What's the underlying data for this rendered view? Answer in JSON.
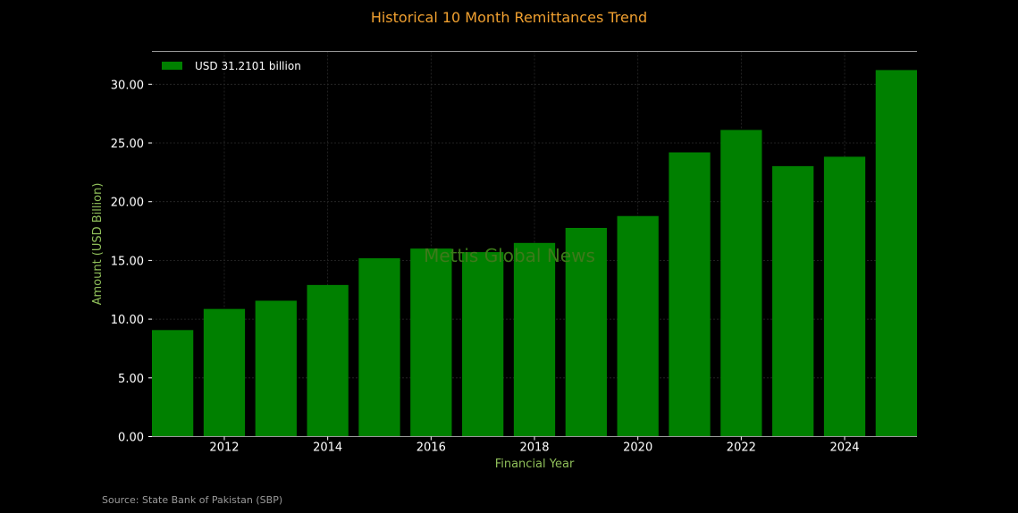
{
  "chart_data": {
    "type": "bar",
    "title": "Historical 10 Month Remittances Trend",
    "xlabel": "Financial Year",
    "ylabel": "Amount (USD Billion)",
    "x": [
      2011,
      2012,
      2013,
      2014,
      2015,
      2016,
      2017,
      2018,
      2019,
      2020,
      2021,
      2022,
      2023,
      2024,
      2025
    ],
    "values": [
      9.07,
      10.87,
      11.57,
      12.91,
      15.19,
      16.01,
      15.71,
      16.49,
      17.77,
      18.78,
      24.2,
      26.11,
      23.03,
      23.83,
      31.2101
    ],
    "xticks": [
      "2012",
      "2014",
      "2016",
      "2018",
      "2020",
      "2022",
      "2024"
    ],
    "xtick_values": [
      2012,
      2014,
      2016,
      2018,
      2020,
      2022,
      2024
    ],
    "yticks": [
      "0.00",
      "5.00",
      "10.00",
      "15.00",
      "20.00",
      "25.00",
      "30.00"
    ],
    "ytick_values": [
      0,
      5,
      10,
      15,
      20,
      25,
      30
    ],
    "ylim": [
      0,
      32.8
    ],
    "xlim": [
      2010.6,
      2025.4
    ],
    "legend": {
      "label": "USD 31.2101 billion",
      "placement": "top-left"
    },
    "grid": true,
    "watermark": "Mettis Global News",
    "source": "Source: State Bank of Pakistan (SBP)"
  },
  "colors": {
    "background": "#000000",
    "bar": "#008000",
    "title": "#f0a030",
    "axis_label": "#8fbf5a",
    "grid": "#2a2a2a",
    "axis_line": "#9a9a9a",
    "watermark": "#3d7a1a"
  }
}
